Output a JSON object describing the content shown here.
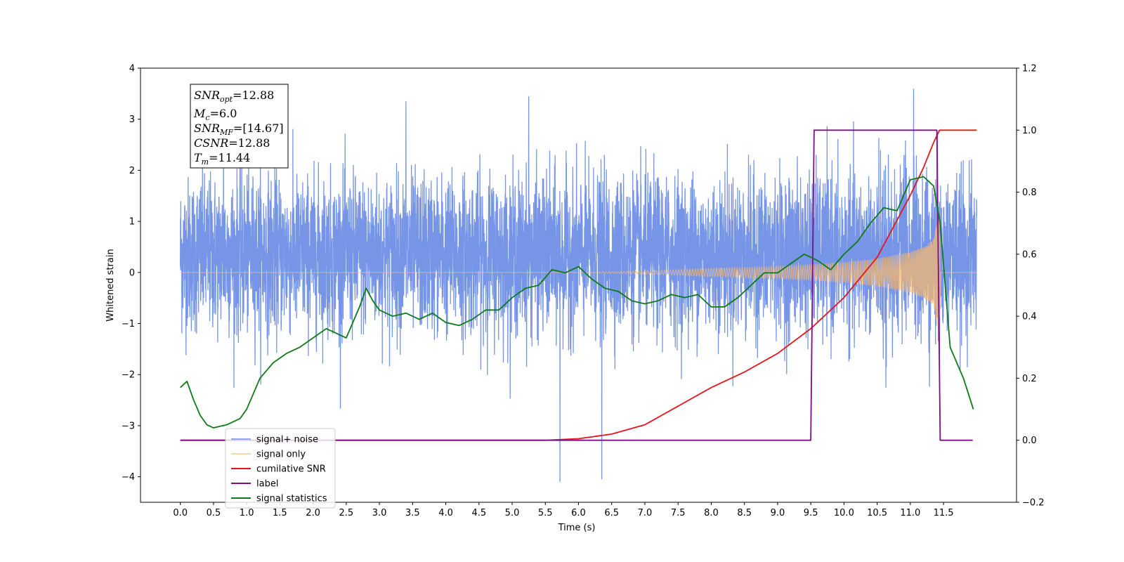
{
  "chart_data": {
    "type": "line",
    "xlabel": "Time (s)",
    "ylabel": "Whitened strain",
    "xlim": [
      -0.6,
      12.6
    ],
    "ylim": [
      -4.5,
      4.0
    ],
    "ylim_right": [
      -0.2,
      1.2
    ],
    "x_ticks": [
      "0.0",
      "0.5",
      "1.0",
      "1.5",
      "2.0",
      "2.5",
      "3.0",
      "3.5",
      "4.0",
      "4.5",
      "5.0",
      "5.5",
      "6.0",
      "6.5",
      "7.0",
      "7.5",
      "8.0",
      "8.5",
      "9.0",
      "9.5",
      "10.0",
      "10.5",
      "11.0",
      "11.5"
    ],
    "y_ticks_left": [
      "4",
      "3",
      "2",
      "1",
      "0",
      "−1",
      "−2",
      "−3",
      "−4"
    ],
    "y_ticks_right": [
      "1.2",
      "1.0",
      "0.8",
      "0.6",
      "0.4",
      "0.2",
      "0.0",
      "−0.2"
    ],
    "grid": false,
    "legend_position": "lower-left",
    "annotation": {
      "snr_opt": {
        "base": "SNR",
        "sub": "opt",
        "value": "=12.88"
      },
      "mc": {
        "base": "M",
        "sub": "c",
        "value": "=6.0"
      },
      "snr_mf": {
        "base": "SNR",
        "sub": "MF",
        "value": "=[14.67]"
      },
      "csnr": {
        "base": "CSNR",
        "value": "=12.88"
      },
      "tm": {
        "base": "T",
        "sub": "m",
        "value": "=11.44"
      }
    },
    "series": [
      {
        "name": "signal+ noise",
        "axis": "left",
        "color": "#6f8fe6",
        "x_range": [
          0.0,
          12.0
        ],
        "noise_std": 0.75,
        "envelope_min": [
          -2.5,
          2.3
        ],
        "spikes": [
          {
            "x": 5.72,
            "y": -4.1
          },
          {
            "x": 6.35,
            "y": -4.05
          },
          {
            "x": 11.05,
            "y": 3.6
          },
          {
            "x": 0.65,
            "y": 3.3
          },
          {
            "x": 3.4,
            "y": 3.35
          },
          {
            "x": 5.25,
            "y": 3.45
          }
        ]
      },
      {
        "name": "signal only",
        "axis": "left",
        "color": "#f5b870",
        "x": [
          0.0,
          6.0,
          7.0,
          8.0,
          9.0,
          9.5,
          10.0,
          10.5,
          11.0,
          11.2,
          11.35,
          11.44,
          11.46,
          12.0
        ],
        "amplitude": [
          0.0,
          0.0,
          0.03,
          0.08,
          0.12,
          0.15,
          0.2,
          0.27,
          0.4,
          0.5,
          0.65,
          1.3,
          0.0,
          0.0
        ]
      },
      {
        "name": "cumilative SNR",
        "axis": "right",
        "color": "#e8131b",
        "x": [
          0.0,
          5.5,
          6.0,
          6.5,
          7.0,
          7.5,
          8.0,
          8.5,
          9.0,
          9.5,
          10.0,
          10.5,
          11.0,
          11.2,
          11.35,
          11.44,
          11.5,
          12.0
        ],
        "values": [
          0.0,
          0.0,
          0.005,
          0.02,
          0.05,
          0.11,
          0.17,
          0.22,
          0.28,
          0.36,
          0.46,
          0.59,
          0.79,
          0.88,
          0.96,
          1.0,
          1.0,
          1.0
        ]
      },
      {
        "name": "label",
        "axis": "right",
        "color": "#7e0e85",
        "x": [
          0.0,
          9.5,
          9.55,
          11.4,
          11.45,
          11.94
        ],
        "values": [
          0.0,
          0.0,
          1.0,
          1.0,
          0.0,
          0.0
        ]
      },
      {
        "name": "signal statistics",
        "axis": "right",
        "color": "#0f7a16",
        "x": [
          0.0,
          0.1,
          0.2,
          0.3,
          0.4,
          0.5,
          0.7,
          0.9,
          1.0,
          1.2,
          1.4,
          1.6,
          1.8,
          2.0,
          2.2,
          2.3,
          2.5,
          2.7,
          2.8,
          2.9,
          3.0,
          3.2,
          3.4,
          3.6,
          3.8,
          4.0,
          4.2,
          4.4,
          4.6,
          4.8,
          5.0,
          5.2,
          5.4,
          5.6,
          5.8,
          6.0,
          6.2,
          6.4,
          6.6,
          6.8,
          7.0,
          7.2,
          7.4,
          7.6,
          7.8,
          8.0,
          8.2,
          8.4,
          8.6,
          8.8,
          9.0,
          9.2,
          9.4,
          9.6,
          9.8,
          10.0,
          10.2,
          10.4,
          10.6,
          10.8,
          11.0,
          11.2,
          11.35,
          11.45,
          11.6,
          11.8,
          11.95
        ],
        "values": [
          0.17,
          0.19,
          0.13,
          0.08,
          0.05,
          0.04,
          0.05,
          0.07,
          0.1,
          0.2,
          0.25,
          0.28,
          0.3,
          0.33,
          0.36,
          0.35,
          0.33,
          0.43,
          0.49,
          0.45,
          0.42,
          0.4,
          0.41,
          0.39,
          0.41,
          0.38,
          0.37,
          0.39,
          0.42,
          0.42,
          0.46,
          0.49,
          0.5,
          0.55,
          0.54,
          0.56,
          0.52,
          0.49,
          0.48,
          0.45,
          0.44,
          0.45,
          0.47,
          0.46,
          0.47,
          0.43,
          0.43,
          0.46,
          0.5,
          0.54,
          0.54,
          0.57,
          0.6,
          0.58,
          0.55,
          0.6,
          0.64,
          0.7,
          0.75,
          0.74,
          0.84,
          0.85,
          0.82,
          0.7,
          0.3,
          0.2,
          0.1
        ]
      }
    ]
  }
}
